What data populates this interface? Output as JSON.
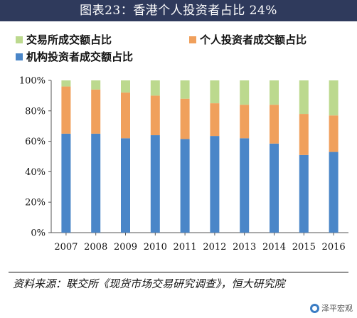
{
  "title": "图表23：香港个人投资者占比 24%",
  "chart_data": {
    "type": "bar",
    "stacked": true,
    "categories": [
      "2007",
      "2008",
      "2009",
      "2010",
      "2011",
      "2012",
      "2013",
      "2014",
      "2015",
      "2016"
    ],
    "series": [
      {
        "name": "机构投资者成交额占比",
        "color": "#4a86c8",
        "values": [
          65,
          65,
          62,
          64,
          61.5,
          63.5,
          62,
          58.5,
          51,
          53
        ]
      },
      {
        "name": "个人投资者成交额占比",
        "color": "#f0a05c",
        "values": [
          31,
          29,
          30,
          26,
          26.5,
          21.5,
          22,
          25.5,
          27,
          24
        ]
      },
      {
        "name": "交易所成交额占比",
        "color": "#bcd98e",
        "values": [
          4,
          6,
          8,
          10,
          12,
          15,
          16,
          16,
          22,
          23
        ]
      }
    ],
    "yticks": [
      "0%",
      "20%",
      "40%",
      "60%",
      "80%",
      "100%"
    ],
    "ylim": [
      0,
      100
    ],
    "grid": false,
    "legend_position": "top"
  },
  "source": "资料来源：联交所《现货市场交易研究调查》，恒大研究院",
  "watermark": "泽平宏观",
  "watermark_icon": "circle-logo-icon"
}
